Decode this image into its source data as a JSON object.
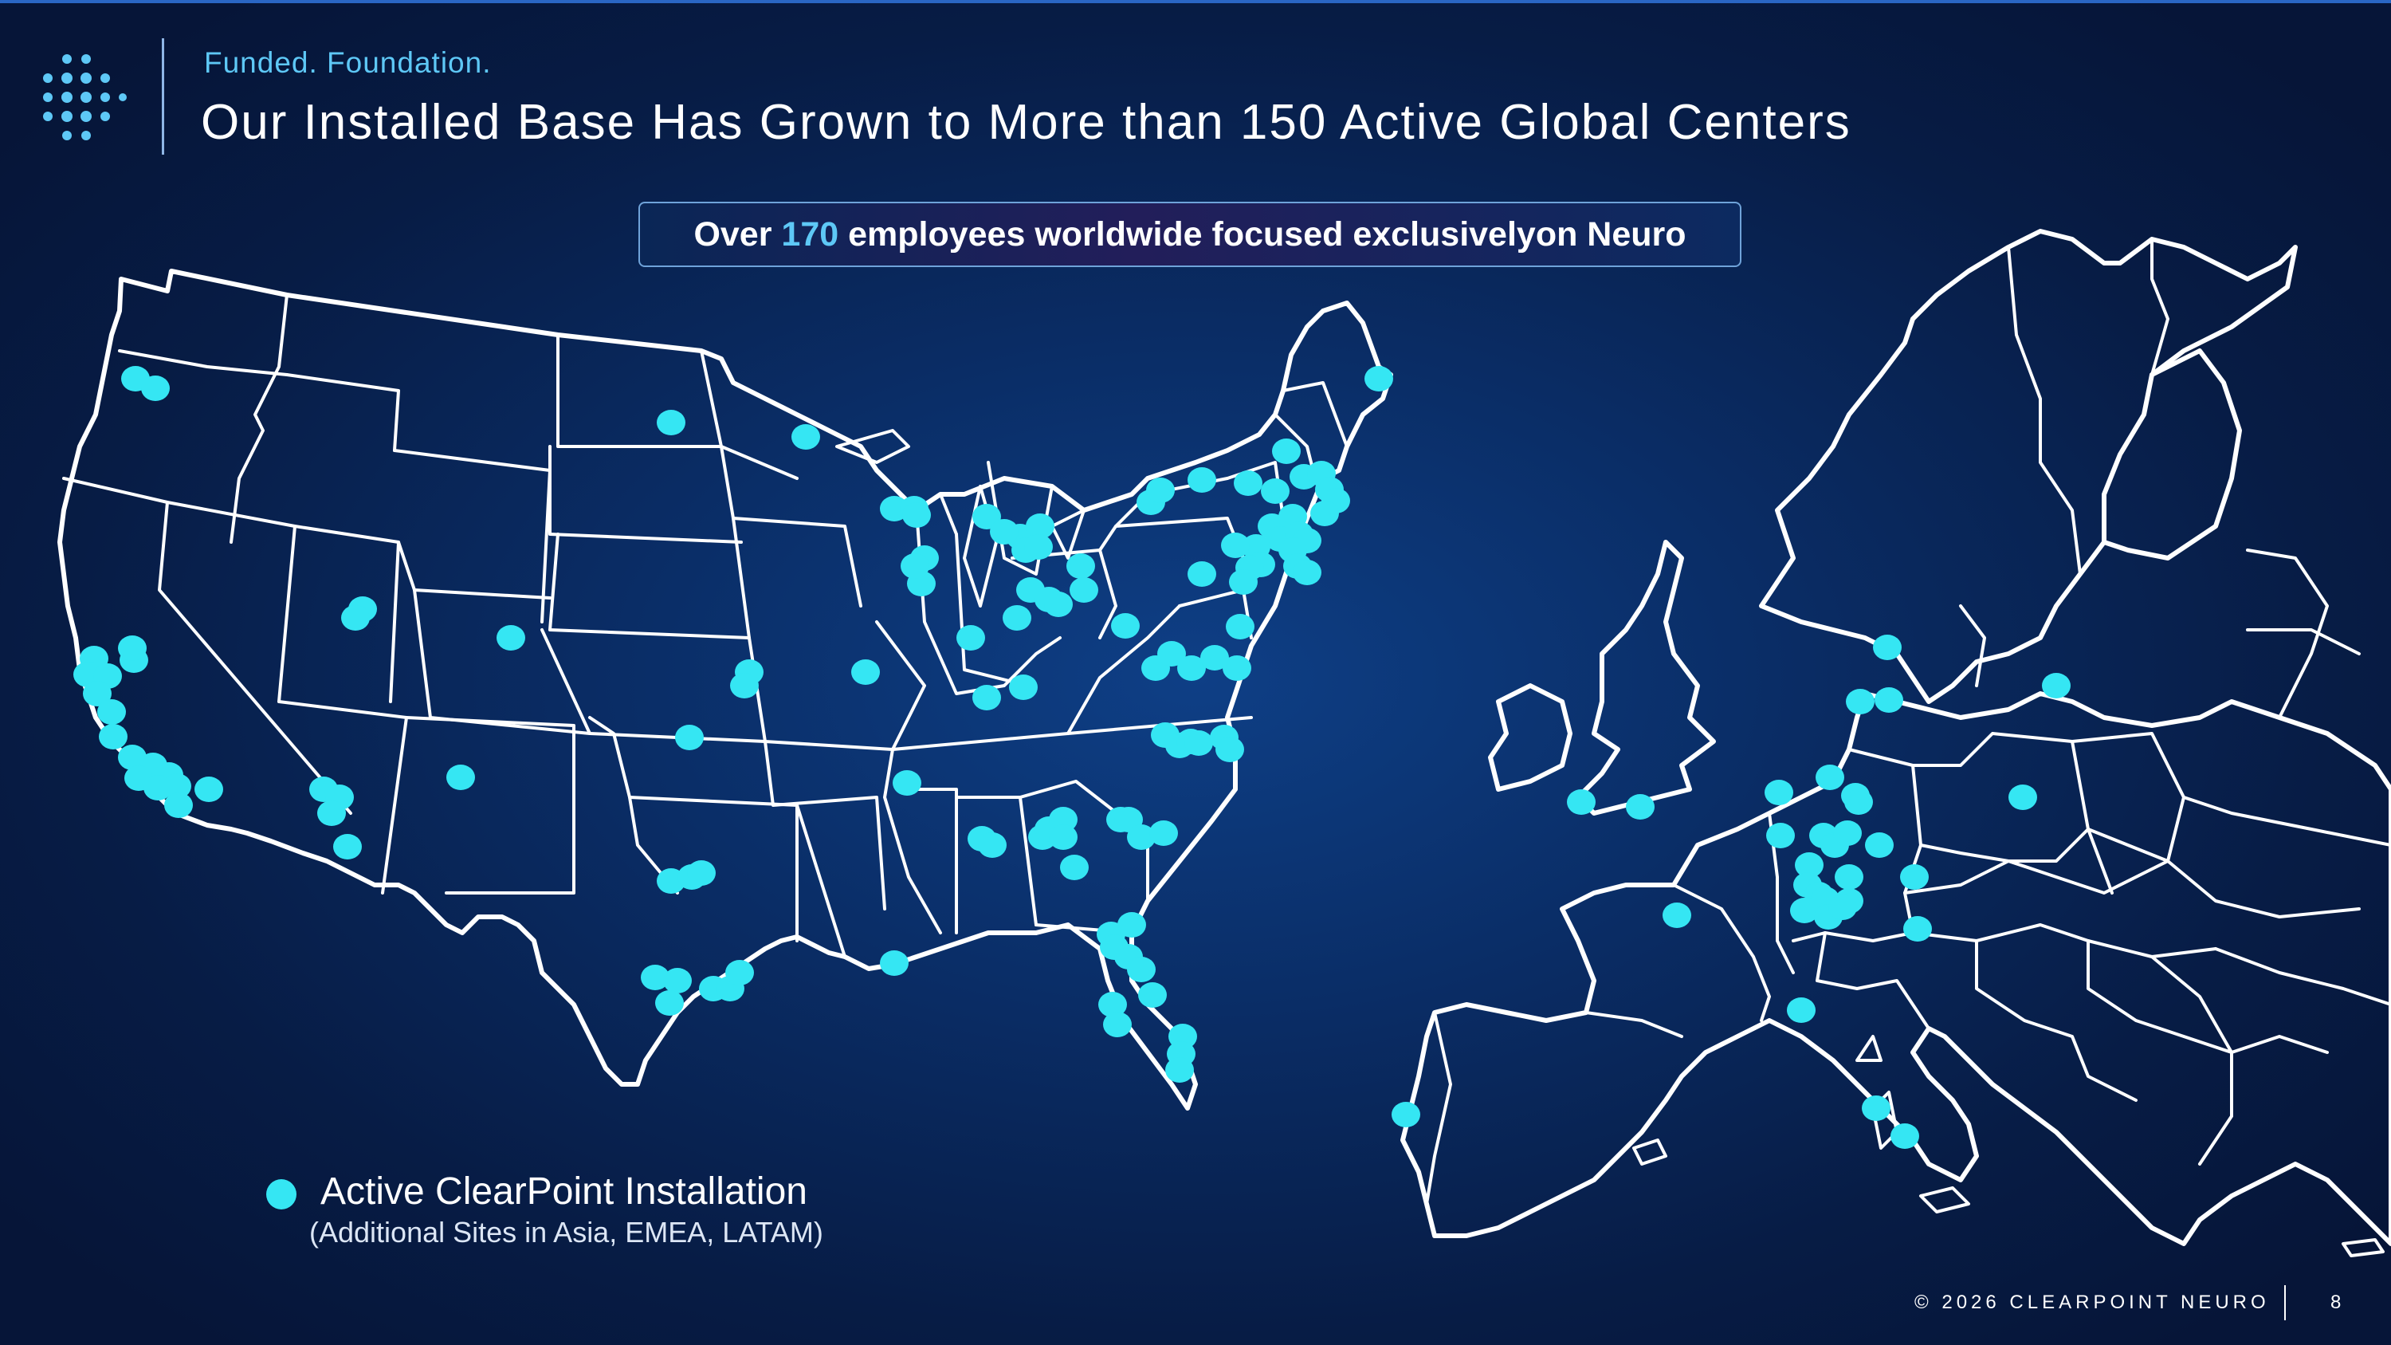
{
  "header": {
    "tagline": "Funded. Foundation.",
    "title": "Our Installed Base Has Grown to More than 150 Active Global Centers"
  },
  "callout": {
    "prefix": "Over ",
    "number": "170",
    "suffix": " employees worldwide focused exclusivelyon Neuro"
  },
  "legend": {
    "label": "Active ClearPoint Installation",
    "note": "(Additional Sites in Asia, EMEA, LATAM)"
  },
  "footer": {
    "copyright": "© 2026 CLEARPOINT NEURO",
    "page": "8"
  },
  "colors": {
    "marker": "#35e6f3",
    "accent": "#5ec8f6",
    "background": "#0a2d66"
  }
}
